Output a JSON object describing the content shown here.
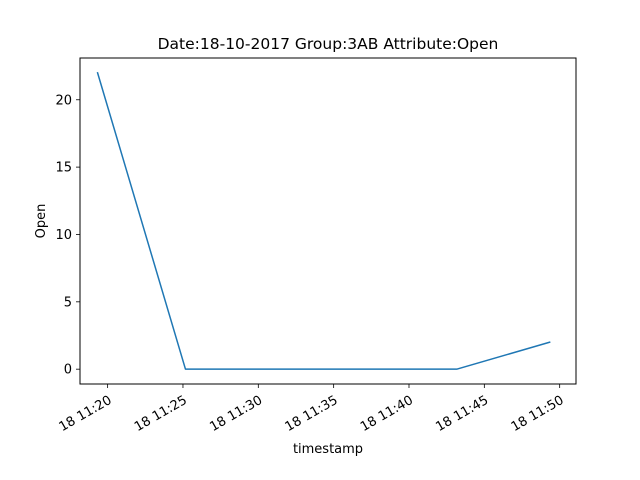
{
  "chart_data": {
    "type": "line",
    "title": "Date:18-10-2017  Group:3AB Attribute:Open",
    "xlabel": "timestamp",
    "ylabel": "Open",
    "x_tick_labels": [
      "18 11:20",
      "18 11:25",
      "18 11:30",
      "18 11:35",
      "18 11:40",
      "18 11:45",
      "18 11:50"
    ],
    "y_tick_labels": [
      "0",
      "5",
      "10",
      "15",
      "20"
    ],
    "x_ticks": [
      "2017-10-18 11:20",
      "2017-10-18 11:25",
      "2017-10-18 11:30",
      "2017-10-18 11:35",
      "2017-10-18 11:40",
      "2017-10-18 11:45",
      "2017-10-18 11:50"
    ],
    "y_ticks": [
      0,
      5,
      10,
      15,
      20
    ],
    "xlim": [
      "2017-10-18 11:18:10",
      "2017-10-18 11:51:05"
    ],
    "ylim": [
      -1.1,
      23.1
    ],
    "grid": false,
    "series": [
      {
        "color": "#1f77b4",
        "x": [
          "2017-10-18 11:19:20",
          "2017-10-18 11:25:10",
          "2017-10-18 11:43:10",
          "2017-10-18 11:49:20"
        ],
        "y": [
          22,
          0,
          0,
          2
        ]
      }
    ]
  }
}
